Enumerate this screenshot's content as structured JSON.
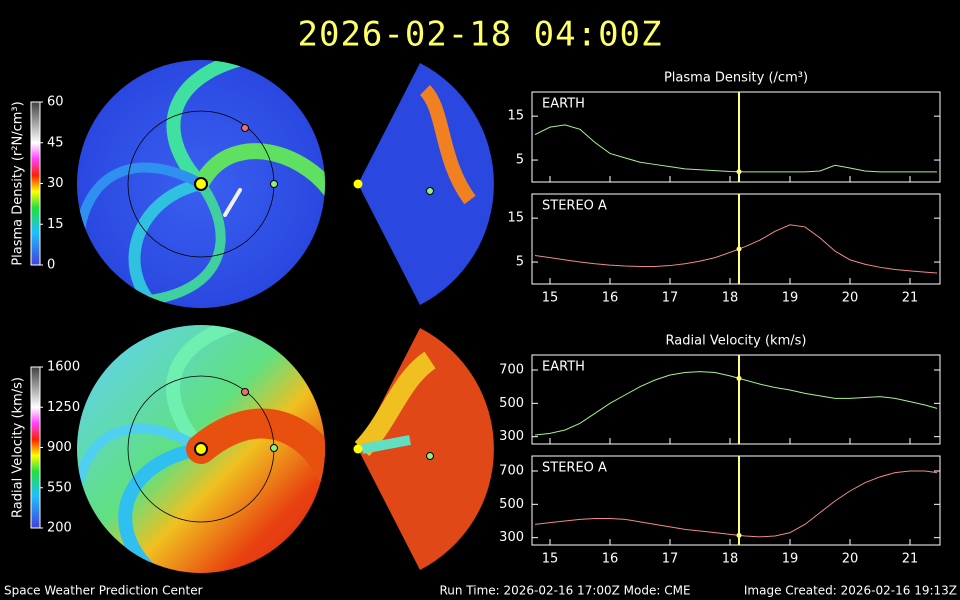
{
  "header": {
    "title": "2026-02-18  04:00Z"
  },
  "footer": {
    "left": "Space Weather Prediction Center",
    "center": "Run Time: 2026-02-16 17:00Z  Mode: CME",
    "right": "Image Created: 2026-02-16 19:13Z"
  },
  "colorbars": [
    {
      "label": "Plasma Density (r²N/cm³)",
      "lim": [
        0,
        60
      ],
      "ticks": [
        0,
        15,
        30,
        45,
        60
      ]
    },
    {
      "label": "Radial Velocity (km/s)",
      "lim": [
        200,
        1600
      ],
      "ticks": [
        200,
        550,
        900,
        1250,
        1600
      ]
    }
  ],
  "chart_data": [
    {
      "type": "line",
      "title": "Plasma Density (/cm³)",
      "x": [
        14.75,
        15,
        15.25,
        15.5,
        15.75,
        16,
        16.25,
        16.5,
        16.75,
        17,
        17.25,
        17.5,
        17.75,
        18,
        18.25,
        18.5,
        18.75,
        19,
        19.25,
        19.5,
        19.75,
        20,
        20.25,
        20.5,
        20.75,
        21,
        21.25,
        21.45
      ],
      "series": [
        {
          "name": "EARTH",
          "color": "#a8f090",
          "values": [
            10.8,
            12.5,
            13,
            12,
            9,
            6.5,
            5.5,
            4.5,
            4,
            3.5,
            3,
            2.8,
            2.6,
            2.4,
            2.3,
            2.3,
            2.3,
            2.3,
            2.3,
            2.5,
            3.8,
            3.2,
            2.5,
            2.3,
            2.3,
            2.3,
            2.3,
            2.3
          ]
        }
      ],
      "xlim": [
        14.7,
        21.5
      ],
      "ylim": [
        0,
        20.5
      ],
      "xticks": [
        15,
        16,
        17,
        18,
        19,
        20,
        21
      ],
      "yticks": [
        5,
        15
      ],
      "xtick_labels": false,
      "cursor_x": 18.15
    },
    {
      "type": "line",
      "x": [
        14.75,
        15,
        15.25,
        15.5,
        15.75,
        16,
        16.25,
        16.5,
        16.75,
        17,
        17.25,
        17.5,
        17.75,
        18,
        18.25,
        18.5,
        18.75,
        19,
        19.25,
        19.5,
        19.75,
        20,
        20.25,
        20.5,
        20.75,
        21,
        21.25,
        21.45
      ],
      "series": [
        {
          "name": "STEREO A",
          "color": "#f08a8a",
          "values": [
            6.5,
            6,
            5.5,
            5,
            4.6,
            4.3,
            4.1,
            4,
            4,
            4.2,
            4.6,
            5.2,
            6,
            7.2,
            8.5,
            10,
            12,
            13.5,
            13,
            10.5,
            7.5,
            5.5,
            4.5,
            3.8,
            3.3,
            3,
            2.7,
            2.5
          ]
        }
      ],
      "xlim": [
        14.7,
        21.5
      ],
      "ylim": [
        0,
        20.5
      ],
      "xticks": [
        15,
        16,
        17,
        18,
        19,
        20,
        21
      ],
      "yticks": [
        5,
        15
      ],
      "xtick_labels": true,
      "cursor_x": 18.15
    },
    {
      "type": "line",
      "title": "Radial Velocity (km/s)",
      "x": [
        14.75,
        15,
        15.25,
        15.5,
        15.75,
        16,
        16.25,
        16.5,
        16.75,
        17,
        17.25,
        17.5,
        17.75,
        18,
        18.25,
        18.5,
        18.75,
        19,
        19.25,
        19.5,
        19.75,
        20,
        20.25,
        20.5,
        20.75,
        21,
        21.25,
        21.45
      ],
      "series": [
        {
          "name": "EARTH",
          "color": "#a8f090",
          "values": [
            310,
            320,
            340,
            380,
            440,
            500,
            550,
            600,
            640,
            670,
            685,
            690,
            685,
            665,
            640,
            615,
            595,
            580,
            560,
            545,
            530,
            530,
            535,
            540,
            530,
            510,
            490,
            470
          ]
        }
      ],
      "xlim": [
        14.7,
        21.5
      ],
      "ylim": [
        256,
        790
      ],
      "xticks": [
        15,
        16,
        17,
        18,
        19,
        20,
        21
      ],
      "yticks": [
        300,
        500,
        700
      ],
      "xtick_labels": false,
      "cursor_x": 18.15
    },
    {
      "type": "line",
      "x": [
        14.75,
        15,
        15.25,
        15.5,
        15.75,
        16,
        16.25,
        16.5,
        16.75,
        17,
        17.25,
        17.5,
        17.75,
        18,
        18.25,
        18.5,
        18.75,
        19,
        19.25,
        19.5,
        19.75,
        20,
        20.25,
        20.5,
        20.75,
        21,
        21.25,
        21.45
      ],
      "series": [
        {
          "name": "STEREO A",
          "color": "#f08a8a",
          "values": [
            380,
            390,
            400,
            410,
            415,
            415,
            410,
            395,
            380,
            365,
            350,
            340,
            330,
            320,
            310,
            305,
            310,
            330,
            380,
            450,
            520,
            580,
            630,
            665,
            690,
            700,
            700,
            690
          ]
        }
      ],
      "xlim": [
        14.7,
        21.5
      ],
      "ylim": [
        256,
        790
      ],
      "xticks": [
        15,
        16,
        17,
        18,
        19,
        20,
        21
      ],
      "yticks": [
        300,
        500,
        700
      ],
      "xtick_labels": true,
      "cursor_x": 18.15
    }
  ]
}
